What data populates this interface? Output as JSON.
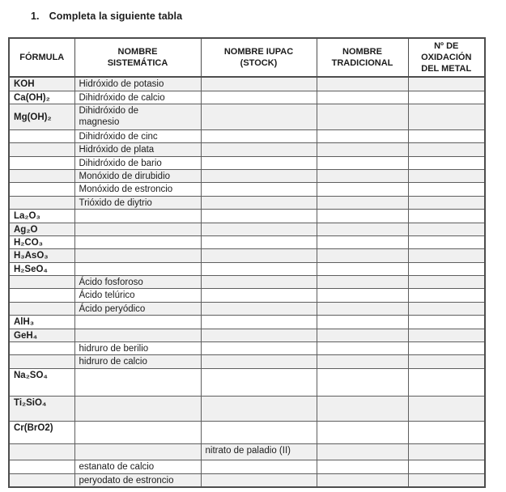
{
  "title": {
    "number": "1.",
    "text": "Completa la siguiente tabla"
  },
  "table": {
    "headers": [
      "FÓRMULA",
      "NOMBRE\nSISTEMÁTICA",
      "NOMBRE IUPAC\n(STOCK)",
      "NOMBRE\nTRADICIONAL",
      "Nº DE\nOXIDACIÓN\nDEL METAL"
    ],
    "rows": [
      {
        "formula": "KOH",
        "sistematica": "Hidróxido de potasio",
        "iupac": "",
        "tradicional": "",
        "oxidacion": ""
      },
      {
        "formula": "Ca(OH)₂",
        "sistematica": "Dihidróxido de calcio",
        "iupac": "",
        "tradicional": "",
        "oxidacion": ""
      },
      {
        "formula": "Mg(OH)₂",
        "sistematica": "Dihidróxido de\nmagnesio",
        "iupac": "",
        "tradicional": "",
        "oxidacion": ""
      },
      {
        "formula": "",
        "sistematica": "Dihidróxido de cinc",
        "iupac": "",
        "tradicional": "",
        "oxidacion": ""
      },
      {
        "formula": "",
        "sistematica": "Hidróxido de plata",
        "iupac": "",
        "tradicional": "",
        "oxidacion": ""
      },
      {
        "formula": "",
        "sistematica": "Dihidróxido de bario",
        "iupac": "",
        "tradicional": "",
        "oxidacion": ""
      },
      {
        "formula": "",
        "sistematica": "Monóxido de dirubidio",
        "iupac": "",
        "tradicional": "",
        "oxidacion": ""
      },
      {
        "formula": "",
        "sistematica": "Monóxido de estroncio",
        "iupac": "",
        "tradicional": "",
        "oxidacion": ""
      },
      {
        "formula": "",
        "sistematica": "Trióxido de diytrio",
        "iupac": "",
        "tradicional": "",
        "oxidacion": ""
      },
      {
        "formula": "La₂O₃",
        "sistematica": "",
        "iupac": "",
        "tradicional": "",
        "oxidacion": ""
      },
      {
        "formula": "Ag₂O",
        "sistematica": "",
        "iupac": "",
        "tradicional": "",
        "oxidacion": ""
      },
      {
        "formula": "H₂CO₃",
        "sistematica": "",
        "iupac": "",
        "tradicional": "",
        "oxidacion": ""
      },
      {
        "formula": "H₃AsO₃",
        "sistematica": "",
        "iupac": "",
        "tradicional": "",
        "oxidacion": ""
      },
      {
        "formula": "H₂SeO₄",
        "sistematica": "",
        "iupac": "",
        "tradicional": "",
        "oxidacion": ""
      },
      {
        "formula": "",
        "sistematica": "Ácido fosforoso",
        "iupac": "",
        "tradicional": "",
        "oxidacion": ""
      },
      {
        "formula": "",
        "sistematica": "Ácido telúrico",
        "iupac": "",
        "tradicional": "",
        "oxidacion": ""
      },
      {
        "formula": "",
        "sistematica": "Ácido peryódico",
        "iupac": "",
        "tradicional": "",
        "oxidacion": ""
      },
      {
        "formula": "AlH₃",
        "sistematica": "",
        "iupac": "",
        "tradicional": "",
        "oxidacion": ""
      },
      {
        "formula": "GeH₄",
        "sistematica": "",
        "iupac": "",
        "tradicional": "",
        "oxidacion": ""
      },
      {
        "formula": "",
        "sistematica": "hidruro de berilio",
        "iupac": "",
        "tradicional": "",
        "oxidacion": ""
      },
      {
        "formula": "",
        "sistematica": "hidruro de calcio",
        "iupac": "",
        "tradicional": "",
        "oxidacion": ""
      },
      {
        "formula": "Na₂SO₄",
        "sistematica": "",
        "iupac": "",
        "tradicional": "",
        "oxidacion": ""
      },
      {
        "formula": "Ti₂SiO₄",
        "sistematica": "",
        "iupac": "",
        "tradicional": "",
        "oxidacion": ""
      },
      {
        "formula": "Cr(BrO2)",
        "sistematica": "",
        "iupac": "",
        "tradicional": "",
        "oxidacion": ""
      },
      {
        "formula": "",
        "sistematica": "",
        "iupac": "nitrato de paladio (II)",
        "tradicional": "",
        "oxidacion": ""
      },
      {
        "formula": "",
        "sistematica": "estanato de calcio",
        "iupac": "",
        "tradicional": "",
        "oxidacion": ""
      },
      {
        "formula": "",
        "sistematica": "peryodato de estroncio",
        "iupac": "",
        "tradicional": "",
        "oxidacion": ""
      }
    ]
  },
  "colors": {
    "row_shade": "#f0f0f0",
    "border": "#4d4d4d",
    "text": "#1c1c1c"
  }
}
